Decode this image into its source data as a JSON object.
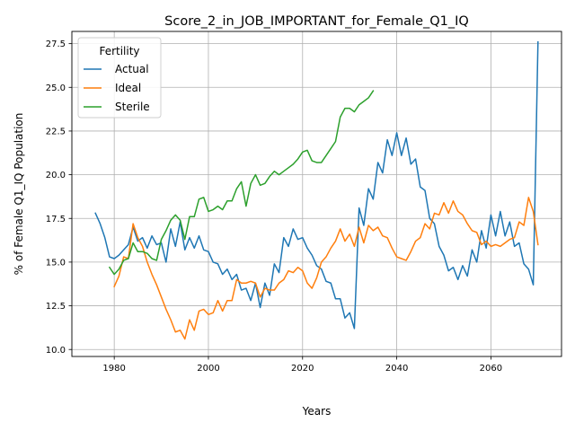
{
  "chart_data": {
    "type": "line",
    "title": "Score_2_in_JOB_IMPORTANT_for_Female_Q1_IQ",
    "xlabel": "Years",
    "ylabel": "% of Female Q1_IQ Population",
    "xlim": [
      1971,
      2075
    ],
    "ylim": [
      9.6,
      28.2
    ],
    "xticks": [
      1980,
      2000,
      2020,
      2040,
      2060
    ],
    "yticks": [
      10.0,
      12.5,
      15.0,
      17.5,
      20.0,
      22.5,
      25.0,
      27.5
    ],
    "xtick_labels": [
      "1980",
      "2000",
      "2020",
      "2040",
      "2060"
    ],
    "ytick_labels": [
      "10.0",
      "12.5",
      "15.0",
      "17.5",
      "20.0",
      "22.5",
      "25.0",
      "27.5"
    ],
    "grid": true,
    "legend": {
      "title": "Fertility",
      "position": "top-left"
    },
    "series": [
      {
        "name": "Actual",
        "color": "#1f77b4",
        "x": [
          1976,
          1977,
          1978,
          1979,
          1980,
          1981,
          1982,
          1983,
          1984,
          1985,
          1986,
          1987,
          1988,
          1989,
          1990,
          1991,
          1992,
          1993,
          1994,
          1995,
          1996,
          1997,
          1998,
          1999,
          2000,
          2001,
          2002,
          2003,
          2004,
          2005,
          2006,
          2007,
          2008,
          2009,
          2010,
          2011,
          2012,
          2013,
          2014,
          2015,
          2016,
          2017,
          2018,
          2019,
          2020,
          2021,
          2022,
          2023,
          2024,
          2025,
          2026,
          2027,
          2028,
          2029,
          2030,
          2031,
          2032,
          2033,
          2034,
          2035,
          2036,
          2037,
          2038,
          2039,
          2040,
          2041,
          2042,
          2043,
          2044,
          2045,
          2046,
          2047,
          2048,
          2049,
          2050,
          2051,
          2052,
          2053,
          2054,
          2055,
          2056,
          2057,
          2058,
          2059,
          2060,
          2061,
          2062,
          2063,
          2064,
          2065,
          2066,
          2067,
          2068,
          2069,
          2070
        ],
        "values": [
          17.8,
          17.2,
          16.4,
          15.3,
          15.2,
          15.4,
          15.7,
          16.0,
          17.0,
          16.2,
          16.4,
          15.8,
          16.5,
          16.0,
          16.1,
          15.0,
          16.9,
          15.9,
          17.3,
          15.7,
          16.4,
          15.8,
          16.5,
          15.7,
          15.6,
          15.0,
          14.9,
          14.3,
          14.6,
          14.0,
          14.3,
          13.4,
          13.5,
          12.8,
          13.8,
          12.4,
          13.8,
          13.1,
          14.9,
          14.4,
          16.4,
          15.9,
          16.9,
          16.3,
          16.4,
          15.8,
          15.4,
          14.8,
          14.6,
          13.9,
          13.8,
          12.9,
          12.9,
          11.8,
          12.1,
          11.2,
          18.1,
          17.1,
          19.2,
          18.6,
          20.7,
          20.1,
          22.0,
          21.1,
          22.4,
          21.1,
          22.1,
          20.6,
          20.9,
          19.3,
          19.1,
          17.5,
          17.2,
          15.9,
          15.4,
          14.5,
          14.7,
          14.0,
          14.8,
          14.2,
          15.7,
          15.0,
          16.8,
          15.8,
          17.7,
          16.5,
          17.9,
          16.5,
          17.3,
          15.9,
          16.1,
          14.9,
          14.6,
          13.7,
          27.6
        ]
      },
      {
        "name": "Ideal",
        "color": "#ff7f0e",
        "x": [
          1980,
          1981,
          1982,
          1983,
          1984,
          1985,
          1986,
          1987,
          1988,
          1989,
          1990,
          1991,
          1992,
          1993,
          1994,
          1995,
          1996,
          1997,
          1998,
          1999,
          2000,
          2001,
          2002,
          2003,
          2004,
          2005,
          2006,
          2007,
          2008,
          2009,
          2010,
          2011,
          2012,
          2013,
          2014,
          2015,
          2016,
          2017,
          2018,
          2019,
          2020,
          2021,
          2022,
          2023,
          2024,
          2025,
          2026,
          2027,
          2028,
          2029,
          2030,
          2031,
          2032,
          2033,
          2034,
          2035,
          2036,
          2037,
          2038,
          2039,
          2040,
          2041,
          2042,
          2043,
          2044,
          2045,
          2046,
          2047,
          2048,
          2049,
          2050,
          2051,
          2052,
          2053,
          2054,
          2055,
          2056,
          2057,
          2058,
          2059,
          2060,
          2061,
          2062,
          2063,
          2064,
          2065,
          2066,
          2067,
          2068,
          2069,
          2070
        ],
        "values": [
          13.6,
          14.2,
          15.3,
          15.2,
          17.2,
          16.4,
          15.9,
          15.0,
          14.3,
          13.7,
          13.0,
          12.3,
          11.7,
          11.0,
          11.1,
          10.6,
          11.7,
          11.1,
          12.2,
          12.3,
          12.0,
          12.1,
          12.8,
          12.2,
          12.8,
          12.8,
          14.0,
          13.8,
          13.8,
          13.9,
          13.8,
          13.0,
          13.5,
          13.4,
          13.4,
          13.8,
          14.0,
          14.5,
          14.4,
          14.7,
          14.5,
          13.8,
          13.5,
          14.1,
          15.0,
          15.3,
          15.8,
          16.2,
          16.9,
          16.2,
          16.6,
          15.9,
          17.0,
          16.1,
          17.1,
          16.8,
          17.0,
          16.5,
          16.4,
          15.8,
          15.3,
          15.2,
          15.1,
          15.6,
          16.2,
          16.4,
          17.2,
          16.9,
          17.8,
          17.7,
          18.4,
          17.8,
          18.5,
          17.9,
          17.7,
          17.2,
          16.8,
          16.7,
          16.0,
          16.2,
          15.9,
          16.0,
          15.9,
          16.1,
          16.3,
          16.4,
          17.3,
          17.1,
          18.7,
          17.9,
          16.0
        ]
      },
      {
        "name": "Sterile",
        "color": "#2ca02c",
        "x": [
          1979,
          1980,
          1981,
          1982,
          1983,
          1984,
          1985,
          1986,
          1987,
          1988,
          1989,
          1990,
          1991,
          1992,
          1993,
          1994,
          1995,
          1996,
          1997,
          1998,
          1999,
          2000,
          2001,
          2002,
          2003,
          2004,
          2005,
          2006,
          2007,
          2008,
          2009,
          2010,
          2011,
          2012,
          2013,
          2014,
          2015,
          2016,
          2017,
          2018,
          2019,
          2020,
          2021,
          2022,
          2023,
          2024,
          2025,
          2026,
          2027,
          2028,
          2029,
          2030,
          2031,
          2032,
          2033,
          2034,
          2035
        ],
        "values": [
          14.7,
          14.3,
          14.6,
          15.1,
          15.2,
          16.1,
          15.6,
          15.6,
          15.5,
          15.2,
          15.1,
          16.3,
          16.8,
          17.4,
          17.7,
          17.4,
          16.3,
          17.6,
          17.6,
          18.6,
          18.7,
          17.9,
          18.0,
          18.2,
          18.0,
          18.5,
          18.5,
          19.2,
          19.6,
          18.2,
          19.5,
          20.0,
          19.4,
          19.5,
          19.9,
          20.2,
          20.0,
          20.2,
          20.4,
          20.6,
          20.9,
          21.3,
          21.4,
          20.8,
          20.7,
          20.7,
          21.1,
          21.5,
          21.9,
          23.3,
          23.8,
          23.8,
          23.6,
          24.0,
          24.2,
          24.4,
          24.8
        ]
      }
    ]
  }
}
